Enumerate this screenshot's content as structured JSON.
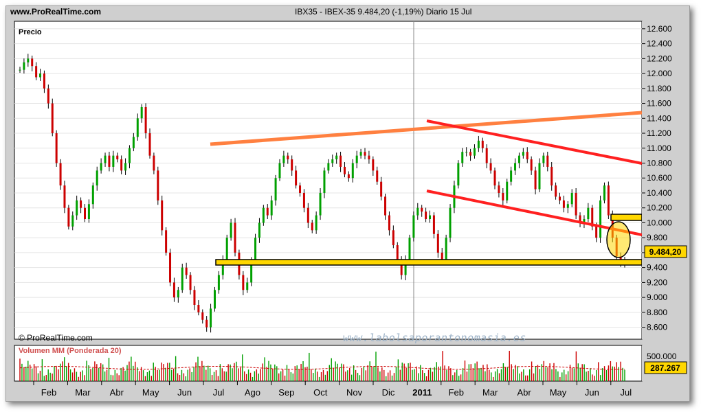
{
  "header": {
    "site": "www.ProRealTime.com",
    "title": "IBX35 - IBEX-35    9.484,20 (-1,19%)   Diario  15 Jul"
  },
  "price_panel": {
    "label": "Precio",
    "last_value": "9.484,20"
  },
  "volume_panel": {
    "label": "Volumen MM (Ponderada 20)",
    "tick": "500.000",
    "last_value": "287.267"
  },
  "copyright": "© ProRealTime.com",
  "watermark": "www.labolsaporantonomasia.es",
  "colors": {
    "up": "#00a000",
    "down": "#cc0000",
    "resistance": "#ff8040",
    "channel": "#ff2020",
    "support": "#ffd700"
  },
  "chart_data": [
    {
      "type": "line",
      "series": [
        {
          "values": [
            12050,
            12150,
            12200,
            12100,
            11950,
            12000,
            11800,
            11600,
            11200,
            10800,
            10500,
            10200,
            9950,
            10100,
            10300,
            10200,
            10050,
            10250,
            10500,
            10700,
            10800,
            10900,
            10750,
            10900,
            10850,
            10700,
            10800,
            11000,
            11150,
            11400,
            11550,
            11200,
            10900,
            10700,
            10300,
            9900,
            9600,
            9200,
            9000,
            9100,
            9400,
            9300,
            9100,
            8900,
            8800,
            8700,
            8600,
            8850,
            9100,
            9300,
            9500,
            9800,
            10000,
            9600,
            9300,
            9100,
            9200,
            9500,
            9800,
            10000,
            10200,
            10100,
            10300,
            10600,
            10800,
            10900,
            10850,
            10700,
            10500,
            10400,
            10200,
            10000,
            9900,
            10100,
            10400,
            10700,
            10800,
            10850,
            10900,
            10750,
            10650,
            10600,
            10800,
            10900,
            10950,
            10900,
            10850,
            10700,
            10550,
            10350,
            10100,
            9900,
            9700,
            9500,
            9300,
            9500,
            9800,
            10100,
            10200,
            10150,
            10050,
            10100,
            9850,
            9600,
            9500,
            9800,
            10200,
            10500,
            10800,
            10950,
            10950,
            10900,
            11000,
            11100,
            11000,
            10800,
            10700,
            10500,
            10400,
            10300,
            10550,
            10700,
            10800,
            10900,
            10950,
            10850,
            10700,
            10450,
            10800,
            10900,
            10750,
            10500,
            10350,
            10300,
            10200,
            10250,
            10400,
            10100,
            10000,
            10050,
            10200,
            9950,
            9800,
            10300,
            10500,
            10100,
            9800,
            9550,
            9450,
            9480
          ]
        }
      ],
      "x_tick_labels": [
        "Feb",
        "Mar",
        "Abr",
        "May",
        "Jun",
        "Jul",
        "Ago",
        "Sep",
        "Oct",
        "Nov",
        "Dic",
        "2011",
        "Feb",
        "Mar",
        "Abr",
        "May",
        "Jun",
        "Jul"
      ],
      "y_tick_labels": [
        "12.600",
        "12.400",
        "12.200",
        "12.000",
        "11.800",
        "11.600",
        "11.400",
        "11.200",
        "11.000",
        "10.800",
        "10.600",
        "10.400",
        "10.200",
        "10.000",
        "9.800",
        "9.600",
        "9.400",
        "9.200",
        "9.000",
        "8.800",
        "8.600"
      ],
      "ylim": [
        8440,
        12700
      ]
    },
    {
      "type": "bar",
      "ylim": [
        0,
        700000
      ]
    }
  ]
}
